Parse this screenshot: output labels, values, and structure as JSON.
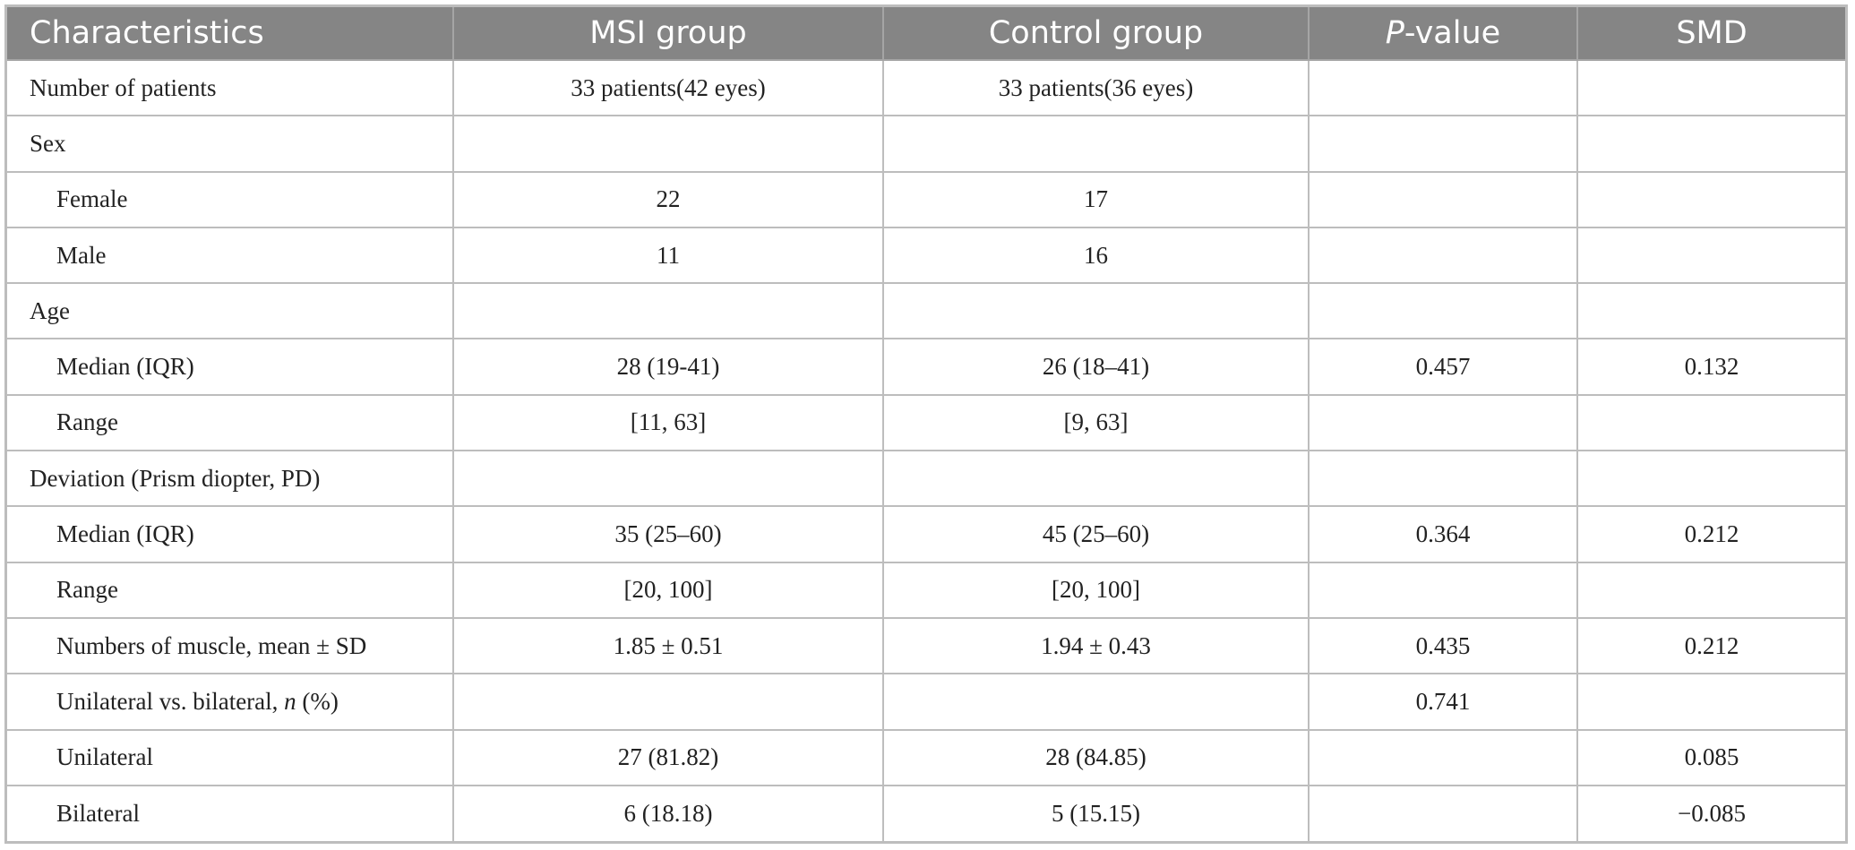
{
  "header": {
    "col1": "Characteristics",
    "col2": "MSI group",
    "col3": "Control group",
    "col4_italic": "P",
    "col4_rest": "-value",
    "col5": "SMD"
  },
  "rows": [
    {
      "label": "Number of patients",
      "msi": "33 patients(42 eyes)",
      "control": "33 patients(36 eyes)",
      "p": "",
      "smd": ""
    },
    {
      "label": "Sex",
      "msi": "",
      "control": "",
      "p": "",
      "smd": ""
    },
    {
      "label": "Female",
      "msi": "22",
      "control": "17",
      "p": "",
      "smd": ""
    },
    {
      "label": "Male",
      "msi": "11",
      "control": "16",
      "p": "",
      "smd": ""
    },
    {
      "label": "Age",
      "msi": "",
      "control": "",
      "p": "",
      "smd": ""
    },
    {
      "label": "Median (IQR)",
      "msi": "28 (19-41)",
      "control": "26 (18–41)",
      "p": "0.457",
      "smd": "0.132"
    },
    {
      "label": "Range",
      "msi": "[11, 63]",
      "control": "[9, 63]",
      "p": "",
      "smd": ""
    },
    {
      "label": "Deviation (Prism diopter, PD)",
      "msi": "",
      "control": "",
      "p": "",
      "smd": ""
    },
    {
      "label": "Median (IQR)",
      "msi": "35 (25–60)",
      "control": "45 (25–60)",
      "p": "0.364",
      "smd": "0.212"
    },
    {
      "label": "Range",
      "msi": "[20, 100]",
      "control": "[20, 100]",
      "p": "",
      "smd": ""
    },
    {
      "label": "Numbers of muscle, mean ± SD",
      "msi": "1.85 ± 0.51",
      "control": "1.94 ± 0.43",
      "p": "0.435",
      "smd": "0.212"
    },
    {
      "label_pre": "Unilateral vs. bilateral, ",
      "label_italic": "n",
      "label_post": " (%)",
      "msi": "",
      "control": "",
      "p": "0.741",
      "smd": ""
    },
    {
      "label": "Unilateral",
      "msi": "27 (81.82)",
      "control": "28 (84.85)",
      "p": "",
      "smd": "0.085"
    },
    {
      "label": "Bilateral",
      "msi": "6 (18.18)",
      "control": "5 (15.15)",
      "p": "",
      "smd": "−0.085"
    }
  ]
}
